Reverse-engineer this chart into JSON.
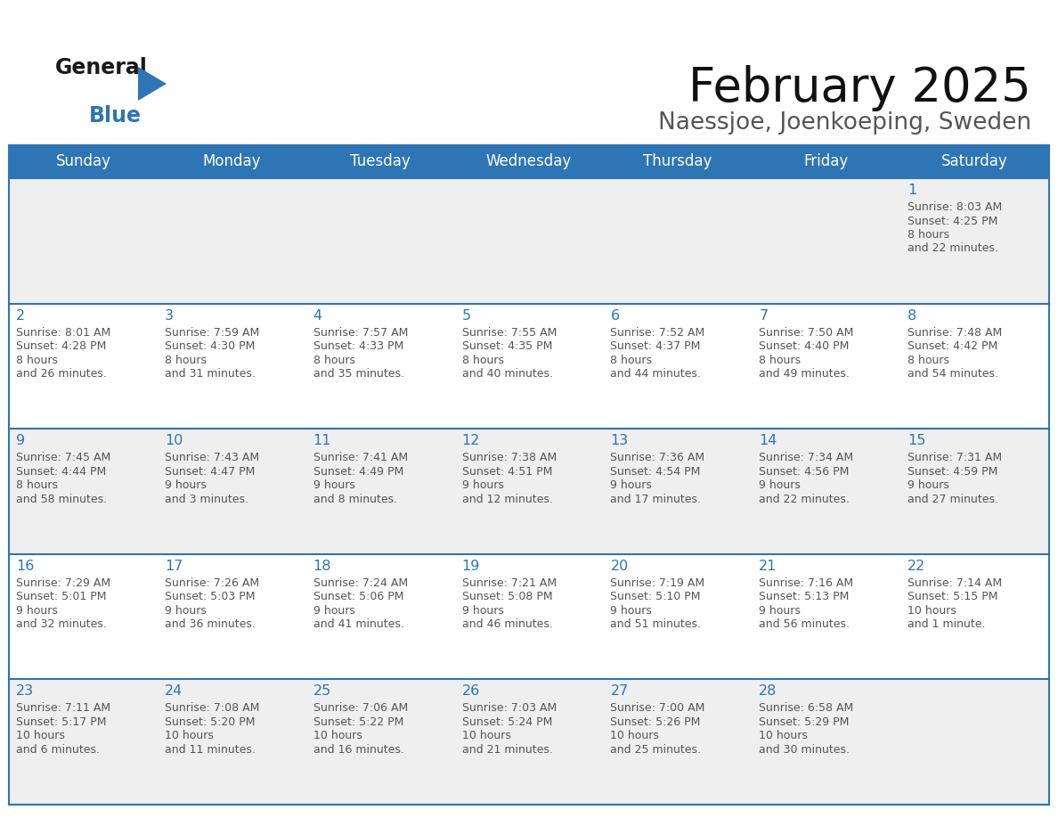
{
  "title": "February 2025",
  "subtitle": "Naessjoe, Joenkoeping, Sweden",
  "header_color": "#2e75b6",
  "header_text_color": "#ffffff",
  "weekdays": [
    "Sunday",
    "Monday",
    "Tuesday",
    "Wednesday",
    "Thursday",
    "Friday",
    "Saturday"
  ],
  "cell_bg_light": "#efefef",
  "cell_bg_white": "#ffffff",
  "cell_border_color": "#2e75b6",
  "day_number_color": "#2e75b6",
  "info_text_color": "#555555",
  "days": [
    {
      "day": 1,
      "week": 0,
      "col": 6,
      "sunrise": "8:03 AM",
      "sunset": "4:25 PM",
      "daylight": "8 hours and 22 minutes."
    },
    {
      "day": 2,
      "week": 1,
      "col": 0,
      "sunrise": "8:01 AM",
      "sunset": "4:28 PM",
      "daylight": "8 hours and 26 minutes."
    },
    {
      "day": 3,
      "week": 1,
      "col": 1,
      "sunrise": "7:59 AM",
      "sunset": "4:30 PM",
      "daylight": "8 hours and 31 minutes."
    },
    {
      "day": 4,
      "week": 1,
      "col": 2,
      "sunrise": "7:57 AM",
      "sunset": "4:33 PM",
      "daylight": "8 hours and 35 minutes."
    },
    {
      "day": 5,
      "week": 1,
      "col": 3,
      "sunrise": "7:55 AM",
      "sunset": "4:35 PM",
      "daylight": "8 hours and 40 minutes."
    },
    {
      "day": 6,
      "week": 1,
      "col": 4,
      "sunrise": "7:52 AM",
      "sunset": "4:37 PM",
      "daylight": "8 hours and 44 minutes."
    },
    {
      "day": 7,
      "week": 1,
      "col": 5,
      "sunrise": "7:50 AM",
      "sunset": "4:40 PM",
      "daylight": "8 hours and 49 minutes."
    },
    {
      "day": 8,
      "week": 1,
      "col": 6,
      "sunrise": "7:48 AM",
      "sunset": "4:42 PM",
      "daylight": "8 hours and 54 minutes."
    },
    {
      "day": 9,
      "week": 2,
      "col": 0,
      "sunrise": "7:45 AM",
      "sunset": "4:44 PM",
      "daylight": "8 hours and 58 minutes."
    },
    {
      "day": 10,
      "week": 2,
      "col": 1,
      "sunrise": "7:43 AM",
      "sunset": "4:47 PM",
      "daylight": "9 hours and 3 minutes."
    },
    {
      "day": 11,
      "week": 2,
      "col": 2,
      "sunrise": "7:41 AM",
      "sunset": "4:49 PM",
      "daylight": "9 hours and 8 minutes."
    },
    {
      "day": 12,
      "week": 2,
      "col": 3,
      "sunrise": "7:38 AM",
      "sunset": "4:51 PM",
      "daylight": "9 hours and 12 minutes."
    },
    {
      "day": 13,
      "week": 2,
      "col": 4,
      "sunrise": "7:36 AM",
      "sunset": "4:54 PM",
      "daylight": "9 hours and 17 minutes."
    },
    {
      "day": 14,
      "week": 2,
      "col": 5,
      "sunrise": "7:34 AM",
      "sunset": "4:56 PM",
      "daylight": "9 hours and 22 minutes."
    },
    {
      "day": 15,
      "week": 2,
      "col": 6,
      "sunrise": "7:31 AM",
      "sunset": "4:59 PM",
      "daylight": "9 hours and 27 minutes."
    },
    {
      "day": 16,
      "week": 3,
      "col": 0,
      "sunrise": "7:29 AM",
      "sunset": "5:01 PM",
      "daylight": "9 hours and 32 minutes."
    },
    {
      "day": 17,
      "week": 3,
      "col": 1,
      "sunrise": "7:26 AM",
      "sunset": "5:03 PM",
      "daylight": "9 hours and 36 minutes."
    },
    {
      "day": 18,
      "week": 3,
      "col": 2,
      "sunrise": "7:24 AM",
      "sunset": "5:06 PM",
      "daylight": "9 hours and 41 minutes."
    },
    {
      "day": 19,
      "week": 3,
      "col": 3,
      "sunrise": "7:21 AM",
      "sunset": "5:08 PM",
      "daylight": "9 hours and 46 minutes."
    },
    {
      "day": 20,
      "week": 3,
      "col": 4,
      "sunrise": "7:19 AM",
      "sunset": "5:10 PM",
      "daylight": "9 hours and 51 minutes."
    },
    {
      "day": 21,
      "week": 3,
      "col": 5,
      "sunrise": "7:16 AM",
      "sunset": "5:13 PM",
      "daylight": "9 hours and 56 minutes."
    },
    {
      "day": 22,
      "week": 3,
      "col": 6,
      "sunrise": "7:14 AM",
      "sunset": "5:15 PM",
      "daylight": "10 hours and 1 minute."
    },
    {
      "day": 23,
      "week": 4,
      "col": 0,
      "sunrise": "7:11 AM",
      "sunset": "5:17 PM",
      "daylight": "10 hours and 6 minutes."
    },
    {
      "day": 24,
      "week": 4,
      "col": 1,
      "sunrise": "7:08 AM",
      "sunset": "5:20 PM",
      "daylight": "10 hours and 11 minutes."
    },
    {
      "day": 25,
      "week": 4,
      "col": 2,
      "sunrise": "7:06 AM",
      "sunset": "5:22 PM",
      "daylight": "10 hours and 16 minutes."
    },
    {
      "day": 26,
      "week": 4,
      "col": 3,
      "sunrise": "7:03 AM",
      "sunset": "5:24 PM",
      "daylight": "10 hours and 21 minutes."
    },
    {
      "day": 27,
      "week": 4,
      "col": 4,
      "sunrise": "7:00 AM",
      "sunset": "5:26 PM",
      "daylight": "10 hours and 25 minutes."
    },
    {
      "day": 28,
      "week": 4,
      "col": 5,
      "sunrise": "6:58 AM",
      "sunset": "5:29 PM",
      "daylight": "10 hours and 30 minutes."
    }
  ]
}
